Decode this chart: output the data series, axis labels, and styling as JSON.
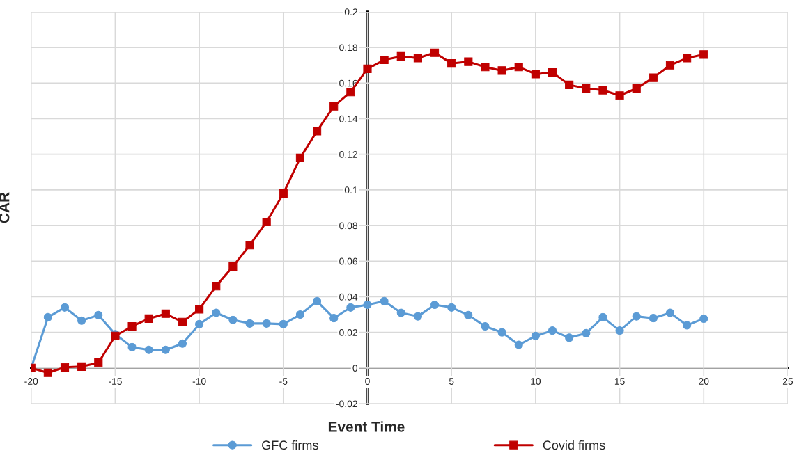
{
  "chart_data": {
    "type": "line",
    "xlabel": "Event Time",
    "ylabel": "CAR",
    "x": [
      -20,
      -19,
      -18,
      -17,
      -16,
      -15,
      -14,
      -13,
      -12,
      -11,
      -10,
      -9,
      -8,
      -7,
      -6,
      -5,
      -4,
      -3,
      -2,
      -1,
      0,
      1,
      2,
      3,
      4,
      5,
      6,
      7,
      8,
      9,
      10,
      11,
      12,
      13,
      14,
      15,
      16,
      17,
      18,
      19,
      20
    ],
    "series": [
      {
        "name": "GFC firms",
        "color": "#5b9bd5",
        "marker": "circle",
        "values": [
          0,
          0.0285,
          0.034,
          0.0266,
          0.0297,
          0.019,
          0.0117,
          0.0102,
          0.0102,
          0.0137,
          0.0246,
          0.031,
          0.027,
          0.025,
          0.025,
          0.0246,
          0.03,
          0.0375,
          0.028,
          0.034,
          0.0355,
          0.0375,
          0.031,
          0.029,
          0.0355,
          0.034,
          0.0297,
          0.0234,
          0.02,
          0.013,
          0.018,
          0.021,
          0.017,
          0.0195,
          0.0285,
          0.021,
          0.029,
          0.028,
          0.031,
          0.024,
          0.0277
        ]
      },
      {
        "name": "Covid firms",
        "color": "#c00000",
        "marker": "square",
        "values": [
          0,
          -0.0027,
          0.0004,
          0.0008,
          0.003,
          0.018,
          0.0234,
          0.0277,
          0.0305,
          0.0258,
          0.033,
          0.046,
          0.057,
          0.069,
          0.082,
          0.098,
          0.118,
          0.133,
          0.147,
          0.155,
          0.168,
          0.173,
          0.175,
          0.174,
          0.177,
          0.171,
          0.172,
          0.169,
          0.167,
          0.169,
          0.165,
          0.166,
          0.159,
          0.157,
          0.156,
          0.153,
          0.157,
          0.163,
          0.17,
          0.174,
          0.176
        ]
      }
    ],
    "xlim": [
      -20,
      25
    ],
    "xticks": [
      -20,
      -15,
      -10,
      -5,
      0,
      5,
      10,
      15,
      20,
      25
    ],
    "ylim": [
      -0.02,
      0.2
    ],
    "yticks": [
      -0.02,
      0,
      0.02,
      0.04,
      0.06,
      0.08,
      0.1,
      0.12,
      0.14,
      0.16,
      0.18,
      0.2
    ],
    "grid": true,
    "legend": "bottom",
    "line_style": "solid"
  }
}
